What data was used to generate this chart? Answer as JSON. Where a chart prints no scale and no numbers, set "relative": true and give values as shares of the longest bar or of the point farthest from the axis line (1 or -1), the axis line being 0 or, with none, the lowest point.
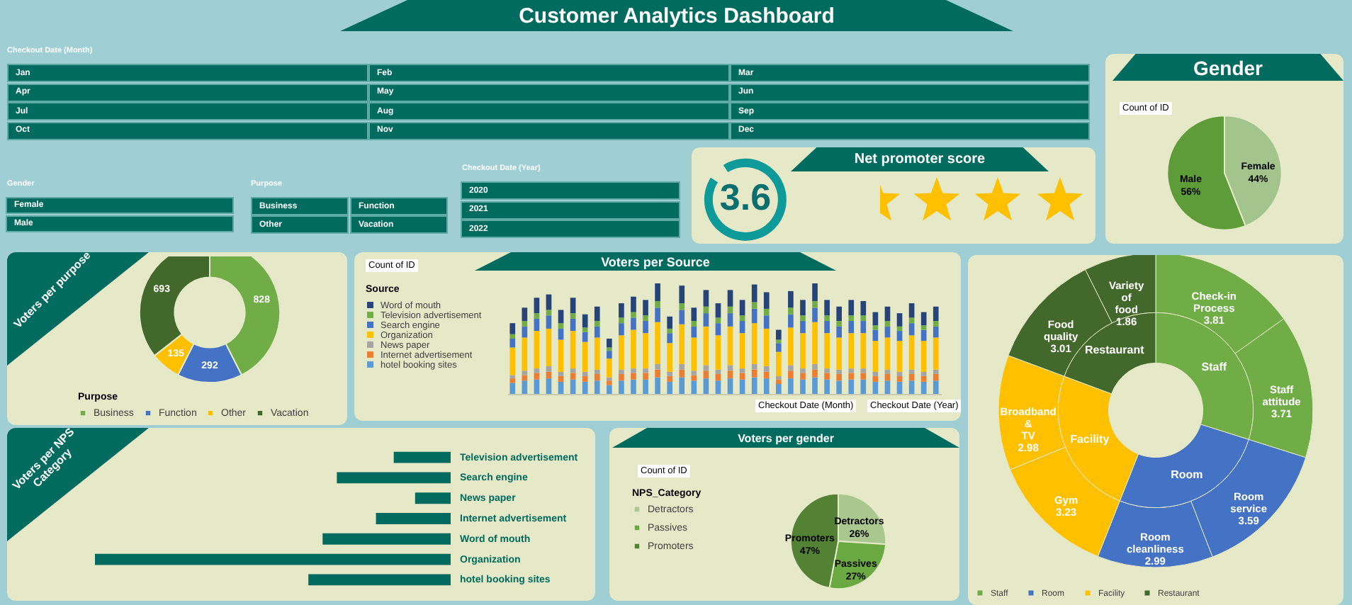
{
  "chart_data": [
    {
      "type": "other",
      "title": "Customer Analytics Dashboard",
      "annotations": [
        "Checkout Date (Month)",
        "Jan",
        "Feb",
        "Mar",
        "Apr",
        "May",
        "Jun",
        "Jul",
        "Aug",
        "Sep",
        "Oct",
        "Nov",
        "Dec",
        "Gender",
        "Female",
        "Male",
        "Purpose",
        "Business",
        "Function",
        "Other",
        "Vacation",
        "Checkout Date (Year)",
        "2020",
        "2021",
        "2022"
      ]
    },
    {
      "type": "pie",
      "title": "Gender",
      "annotations": [
        "Count of ID"
      ],
      "categories": [
        "Female",
        "Male"
      ],
      "values": [
        44,
        56
      ],
      "colors": [
        "#a3c48c",
        "#5e9c3a"
      ],
      "value_labels": [
        "44%",
        "56%"
      ]
    },
    {
      "type": "other",
      "title": "Net promoter score",
      "annotations": [
        "3.6"
      ]
    },
    {
      "type": "donut",
      "title": "Voters per purpose",
      "categories": [
        "Business",
        "Function",
        "Other",
        "Vacation"
      ],
      "values": [
        828,
        292,
        135,
        693
      ],
      "colors": [
        "#70ad47",
        "#4472c4",
        "#ffc000",
        "#43682b"
      ],
      "data_labels": true,
      "legend": "bottom",
      "legend_title": "Purpose"
    },
    {
      "type": "bar",
      "title": "Voters per Source",
      "annotations": [
        "Count of ID",
        "Checkout Date (Month)",
        "Checkout Date (Year)"
      ],
      "legend_title": "Source",
      "legend": "left",
      "stacked": true,
      "relative": true,
      "categories": [
        null,
        null,
        null,
        null,
        null,
        null,
        null,
        null,
        null,
        null,
        null,
        null,
        null,
        null,
        null,
        null,
        null,
        null,
        null,
        null,
        null,
        null,
        null,
        null,
        null,
        null,
        null,
        null,
        null,
        null,
        null,
        null,
        null,
        null,
        null,
        null
      ],
      "series": [
        {
          "name": "hotel booking sites",
          "color": "#5b9bd5",
          "values": [
            0.1,
            0.12,
            0.13,
            0.14,
            0.11,
            0.13,
            0.11,
            0.12,
            0.08,
            0.12,
            0.13,
            0.13,
            0.15,
            0.11,
            0.15,
            0.12,
            0.14,
            0.12,
            0.14,
            0.13,
            0.15,
            0.14,
            0.09,
            0.14,
            0.13,
            0.15,
            0.13,
            0.12,
            0.13,
            0.13,
            0.11,
            0.12,
            0.11,
            0.12,
            0.11,
            0.12
          ]
        },
        {
          "name": "Internet advertisement",
          "color": "#ed7d31",
          "values": [
            0.04,
            0.05,
            0.06,
            0.06,
            0.05,
            0.06,
            0.05,
            0.06,
            0.04,
            0.06,
            0.06,
            0.06,
            0.07,
            0.05,
            0.07,
            0.05,
            0.07,
            0.06,
            0.07,
            0.06,
            0.07,
            0.06,
            0.04,
            0.07,
            0.06,
            0.07,
            0.06,
            0.06,
            0.06,
            0.06,
            0.05,
            0.06,
            0.05,
            0.06,
            0.05,
            0.06
          ]
        },
        {
          "name": "News paper",
          "color": "#a5a5a5",
          "values": [
            0.03,
            0.04,
            0.04,
            0.05,
            0.04,
            0.04,
            0.04,
            0.04,
            0.03,
            0.04,
            0.04,
            0.04,
            0.05,
            0.04,
            0.05,
            0.04,
            0.05,
            0.04,
            0.05,
            0.04,
            0.05,
            0.05,
            0.03,
            0.05,
            0.04,
            0.05,
            0.04,
            0.04,
            0.04,
            0.04,
            0.04,
            0.04,
            0.04,
            0.04,
            0.04,
            0.04
          ]
        },
        {
          "name": "Organization",
          "color": "#ffc000",
          "values": [
            0.25,
            0.3,
            0.34,
            0.34,
            0.29,
            0.34,
            0.27,
            0.29,
            0.17,
            0.31,
            0.35,
            0.32,
            0.38,
            0.26,
            0.36,
            0.3,
            0.35,
            0.31,
            0.35,
            0.32,
            0.37,
            0.34,
            0.22,
            0.34,
            0.32,
            0.38,
            0.32,
            0.29,
            0.32,
            0.32,
            0.28,
            0.29,
            0.28,
            0.31,
            0.28,
            0.29
          ]
        },
        {
          "name": "Search engine",
          "color": "#4472c4",
          "values": [
            0.08,
            0.1,
            0.11,
            0.12,
            0.1,
            0.11,
            0.09,
            0.1,
            0.07,
            0.11,
            0.11,
            0.11,
            0.13,
            0.09,
            0.13,
            0.1,
            0.12,
            0.11,
            0.12,
            0.11,
            0.13,
            0.12,
            0.08,
            0.12,
            0.11,
            0.13,
            0.11,
            0.1,
            0.11,
            0.11,
            0.1,
            0.1,
            0.09,
            0.11,
            0.1,
            0.1
          ]
        },
        {
          "name": "Television advertisement",
          "color": "#70ad47",
          "values": [
            0.04,
            0.05,
            0.05,
            0.05,
            0.05,
            0.05,
            0.04,
            0.05,
            0.03,
            0.05,
            0.05,
            0.05,
            0.06,
            0.04,
            0.06,
            0.05,
            0.06,
            0.05,
            0.06,
            0.05,
            0.06,
            0.06,
            0.03,
            0.06,
            0.05,
            0.06,
            0.05,
            0.05,
            0.05,
            0.05,
            0.04,
            0.05,
            0.04,
            0.05,
            0.04,
            0.05
          ]
        },
        {
          "name": "Word of mouth",
          "color": "#264478",
          "values": [
            0.1,
            0.12,
            0.14,
            0.14,
            0.12,
            0.14,
            0.12,
            0.13,
            0.08,
            0.13,
            0.14,
            0.14,
            0.16,
            0.11,
            0.16,
            0.12,
            0.15,
            0.13,
            0.15,
            0.14,
            0.16,
            0.15,
            0.09,
            0.15,
            0.14,
            0.16,
            0.14,
            0.13,
            0.14,
            0.13,
            0.12,
            0.13,
            0.12,
            0.13,
            0.12,
            0.13
          ]
        }
      ]
    },
    {
      "type": "other",
      "categories": [
        "Check-in Process",
        "Staff attitude",
        "Room service",
        "Room cleanliness",
        "Gym",
        "Broadband & TV",
        "Food quality",
        "Variety of food"
      ],
      "data_labels": true,
      "legend": "bottom",
      "series": [
        {
          "name": "Staff",
          "color": "#70ad47",
          "values": [
            3.81,
            3.71,
            null,
            null,
            null,
            null,
            null,
            null
          ]
        },
        {
          "name": "Room",
          "color": "#4472c4",
          "values": [
            null,
            null,
            3.59,
            2.99,
            null,
            null,
            null,
            null
          ]
        },
        {
          "name": "Facility",
          "color": "#ffc000",
          "values": [
            null,
            null,
            null,
            null,
            3.23,
            2.98,
            null,
            null
          ]
        },
        {
          "name": "Restaurant",
          "color": "#43682b",
          "values": [
            null,
            null,
            null,
            null,
            null,
            null,
            3.01,
            1.86
          ]
        }
      ]
    },
    {
      "type": "bar",
      "title": "Voters per NPS Category",
      "orientation": "horizontal",
      "relative": true,
      "categories": [
        "Television advertisement",
        "Search engine",
        "News paper",
        "Internet advertisement",
        "Word of mouth",
        "Organization",
        "hotel booking sites"
      ],
      "values": [
        0.16,
        0.32,
        0.1,
        0.21,
        0.36,
        1,
        0.4
      ],
      "color": "#006b5e"
    },
    {
      "type": "pie",
      "title": "Voters per gender",
      "annotations": [
        "Count of ID"
      ],
      "legend": "left",
      "legend_title": "NPS_Category",
      "categories": [
        "Detractors",
        "Passives",
        "Promoters"
      ],
      "values": [
        26,
        27,
        47
      ],
      "colors": [
        "#a9c78f",
        "#6aa842",
        "#548235"
      ],
      "value_labels": [
        "26%",
        "27%",
        "47%"
      ]
    }
  ]
}
